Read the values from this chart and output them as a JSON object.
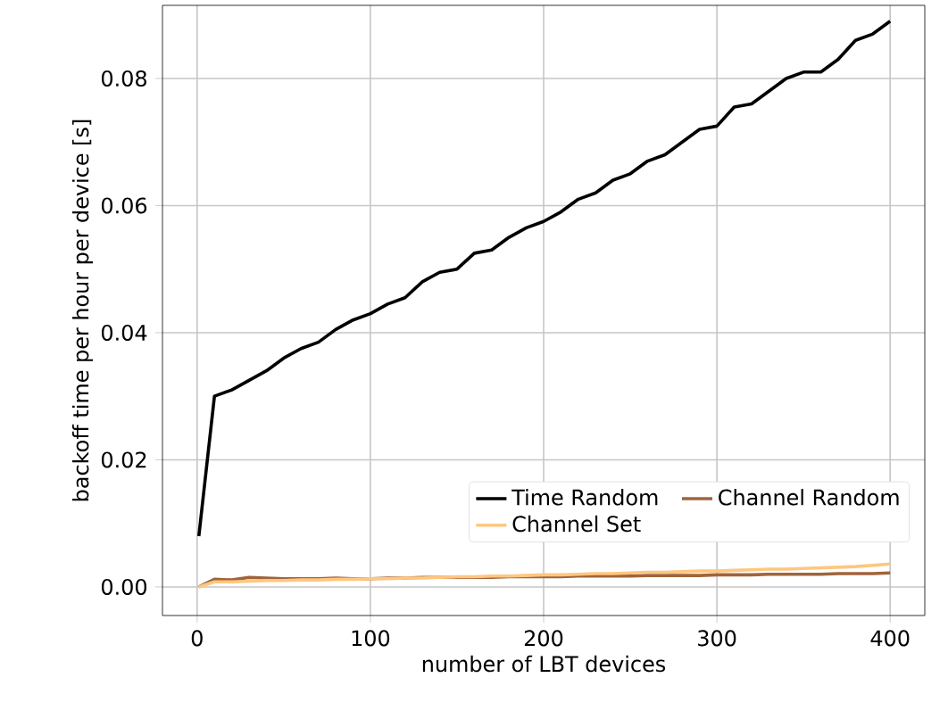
{
  "chart_data": {
    "type": "line",
    "xlabel": "number of LBT devices",
    "ylabel": "backoff time per hour per device [s]",
    "x": [
      1,
      10,
      20,
      30,
      40,
      50,
      60,
      70,
      80,
      90,
      100,
      110,
      120,
      130,
      140,
      150,
      160,
      170,
      180,
      190,
      200,
      210,
      220,
      230,
      240,
      250,
      260,
      270,
      280,
      290,
      300,
      310,
      320,
      330,
      340,
      350,
      360,
      370,
      380,
      390,
      400
    ],
    "series": [
      {
        "name": "Time Random",
        "color": "#000000",
        "values": [
          0.008,
          0.03,
          0.031,
          0.0325,
          0.034,
          0.036,
          0.0375,
          0.0385,
          0.0405,
          0.042,
          0.043,
          0.0445,
          0.0455,
          0.048,
          0.0495,
          0.05,
          0.0525,
          0.053,
          0.055,
          0.0565,
          0.0575,
          0.059,
          0.061,
          0.062,
          0.064,
          0.065,
          0.067,
          0.068,
          0.07,
          0.072,
          0.0725,
          0.0755,
          0.076,
          0.078,
          0.08,
          0.081,
          0.081,
          0.083,
          0.086,
          0.087,
          0.089
        ]
      },
      {
        "name": "Channel Random",
        "color": "#a0643c",
        "values": [
          0.0,
          0.0012,
          0.0011,
          0.0015,
          0.0014,
          0.0013,
          0.0013,
          0.0013,
          0.0014,
          0.0013,
          0.0013,
          0.0014,
          0.0014,
          0.0015,
          0.0015,
          0.0015,
          0.0015,
          0.0015,
          0.0016,
          0.0016,
          0.0016,
          0.0016,
          0.0017,
          0.0017,
          0.0017,
          0.0017,
          0.0018,
          0.0018,
          0.0018,
          0.0018,
          0.0019,
          0.0019,
          0.0019,
          0.002,
          0.002,
          0.002,
          0.002,
          0.0021,
          0.0021,
          0.0021,
          0.0022
        ]
      },
      {
        "name": "Channel Set",
        "color": "#ffc67f",
        "values": [
          0.0,
          0.0008,
          0.0008,
          0.0009,
          0.001,
          0.001,
          0.0011,
          0.0011,
          0.0012,
          0.0012,
          0.0013,
          0.0013,
          0.0014,
          0.0014,
          0.0015,
          0.0016,
          0.0016,
          0.0017,
          0.0017,
          0.0018,
          0.0019,
          0.0019,
          0.002,
          0.0021,
          0.0021,
          0.0022,
          0.0023,
          0.0023,
          0.0024,
          0.0025,
          0.0025,
          0.0026,
          0.0027,
          0.0028,
          0.0028,
          0.0029,
          0.003,
          0.0031,
          0.0032,
          0.0034,
          0.0036
        ]
      }
    ],
    "xlim": [
      -20,
      420
    ],
    "ylim": [
      -0.0045,
      0.0915
    ],
    "xticks": [
      0,
      100,
      200,
      300,
      400
    ],
    "yticks": [
      {
        "value": 0,
        "label": "0.00"
      },
      {
        "value": 0.02,
        "label": "0.02"
      },
      {
        "value": 0.04,
        "label": "0.04"
      },
      {
        "value": 0.06,
        "label": "0.06"
      },
      {
        "value": 0.08,
        "label": "0.08"
      }
    ],
    "grid": true,
    "legend": "bottom right",
    "marker": "none",
    "line_style": "solid"
  }
}
